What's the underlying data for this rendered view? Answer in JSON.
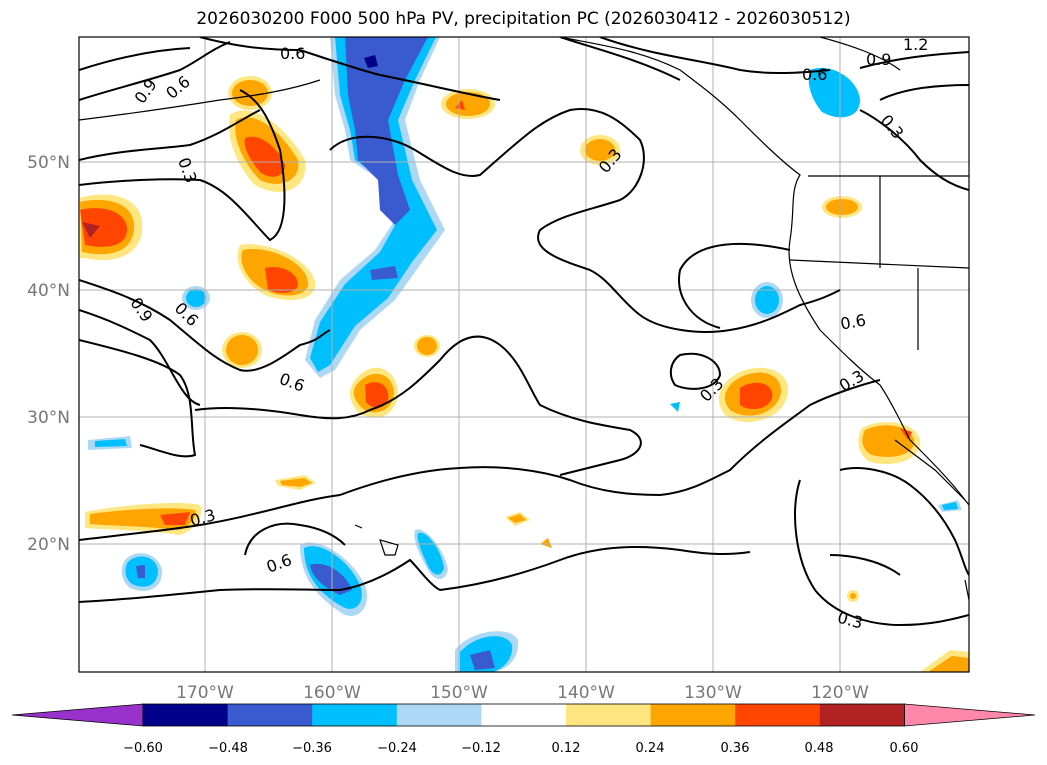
{
  "title": "2026030200 F000 500 hPa PV, precipitation PC (2026030412 - 2026030512)",
  "axes": {
    "lon_labels": [
      "170°W",
      "160°W",
      "150°W",
      "140°W",
      "130°W",
      "120°W"
    ],
    "lat_labels": [
      "50°N",
      "40°N",
      "30°N",
      "20°N"
    ]
  },
  "contour_labels": [
    "0.6",
    "0.9",
    "0.6",
    "0.3",
    "0.9",
    "0.6",
    "0.6",
    "0.3",
    "0.3",
    "0.6",
    "0.3",
    "0.6",
    "0.9",
    "1.2",
    "0.3",
    "0.6",
    "0.3",
    "0.3"
  ],
  "colorbar": {
    "ticks": [
      "−0.60",
      "−0.48",
      "−0.36",
      "−0.24",
      "−0.12",
      "0.12",
      "0.24",
      "0.36",
      "0.48",
      "0.60"
    ],
    "colors": [
      "#9932cc",
      "#00008b",
      "#3a5bd0",
      "#00bfff",
      "#add8f5",
      "#ffffff",
      "#ffe680",
      "#ffa500",
      "#ff4500",
      "#b22222",
      "#ff88aa"
    ]
  },
  "colors": {
    "pos_light": "#ffe680",
    "pos_orange": "#ffa500",
    "pos_red": "#ff4500",
    "pos_dark": "#b22222",
    "neg_light": "#add8f5",
    "neg_cyan": "#00bfff",
    "neg_blue": "#3a5bd0",
    "neg_navy": "#00008b"
  }
}
